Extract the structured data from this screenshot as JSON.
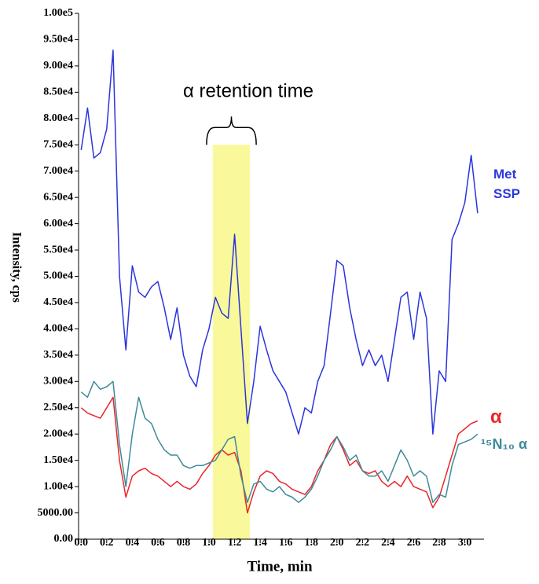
{
  "chart_data": {
    "type": "line",
    "annotation": "α retention time",
    "xlabel": "Time, min",
    "ylabel": "Intensity, cps",
    "xlim": [
      -0.02,
      3.15
    ],
    "ylim": [
      0,
      100000
    ],
    "xticks": [
      {
        "value": 0,
        "label": "0.0"
      },
      {
        "value": 0.2,
        "label": "0.2"
      },
      {
        "value": 0.4,
        "label": "0.4"
      },
      {
        "value": 0.6,
        "label": "0.6"
      },
      {
        "value": 0.8,
        "label": "0.8"
      },
      {
        "value": 1,
        "label": "1.0"
      },
      {
        "value": 1.2,
        "label": "1.2"
      },
      {
        "value": 1.4,
        "label": "1.4"
      },
      {
        "value": 1.6,
        "label": "1.6"
      },
      {
        "value": 1.8,
        "label": "1.8"
      },
      {
        "value": 2,
        "label": "2.0"
      },
      {
        "value": 2.2,
        "label": "2.2"
      },
      {
        "value": 2.4,
        "label": "2.4"
      },
      {
        "value": 2.6,
        "label": "2.6"
      },
      {
        "value": 2.8,
        "label": "2.8"
      },
      {
        "value": 3,
        "label": "3.0"
      }
    ],
    "yticks": [
      {
        "value": 0,
        "label": "0.00"
      },
      {
        "value": 5000,
        "label": "5000.00"
      },
      {
        "value": 10000,
        "label": "1.00e4"
      },
      {
        "value": 15000,
        "label": "1.50e4"
      },
      {
        "value": 20000,
        "label": "2.00e4"
      },
      {
        "value": 25000,
        "label": "2.50e4"
      },
      {
        "value": 30000,
        "label": "3.00e4"
      },
      {
        "value": 35000,
        "label": "3.50e4"
      },
      {
        "value": 40000,
        "label": "4.00e4"
      },
      {
        "value": 45000,
        "label": "4.50e4"
      },
      {
        "value": 50000,
        "label": "5.00e4"
      },
      {
        "value": 55000,
        "label": "5.50e4"
      },
      {
        "value": 60000,
        "label": "6.00e4"
      },
      {
        "value": 65000,
        "label": "6.50e4"
      },
      {
        "value": 70000,
        "label": "7.00e4"
      },
      {
        "value": 75000,
        "label": "7.50e4"
      },
      {
        "value": 80000,
        "label": "8.00e4"
      },
      {
        "value": 85000,
        "label": "8.50e4"
      },
      {
        "value": 90000,
        "label": "9.00e4"
      },
      {
        "value": 95000,
        "label": "9.50e4"
      },
      {
        "value": 100000,
        "label": "1.00e5"
      }
    ],
    "highlight": {
      "xlim": [
        1.03,
        1.32
      ],
      "ylim": [
        0,
        75000
      ],
      "color": "#f7f77a"
    },
    "x": [
      0,
      0.05,
      0.1,
      0.15,
      0.2,
      0.25,
      0.3,
      0.35,
      0.4,
      0.45,
      0.5,
      0.55,
      0.6,
      0.65,
      0.7,
      0.75,
      0.8,
      0.85,
      0.9,
      0.95,
      1,
      1.05,
      1.1,
      1.15,
      1.2,
      1.25,
      1.3,
      1.35,
      1.4,
      1.45,
      1.5,
      1.55,
      1.6,
      1.65,
      1.7,
      1.75,
      1.8,
      1.85,
      1.9,
      1.95,
      2,
      2.05,
      2.1,
      2.15,
      2.2,
      2.25,
      2.3,
      2.35,
      2.4,
      2.45,
      2.5,
      2.55,
      2.6,
      2.65,
      2.7,
      2.75,
      2.8,
      2.85,
      2.9,
      2.95,
      3,
      3.05,
      3.1
    ],
    "series": [
      {
        "name": "Met SSP",
        "color": "#2b35dc",
        "values": [
          74000,
          82000,
          72500,
          73500,
          78000,
          93000,
          50000,
          36000,
          52000,
          47000,
          46000,
          48000,
          49000,
          44000,
          38000,
          44000,
          35000,
          31000,
          29000,
          36000,
          40000,
          46000,
          43000,
          42000,
          58000,
          40000,
          22000,
          30000,
          40500,
          36000,
          32000,
          30000,
          28000,
          24000,
          20000,
          25000,
          24000,
          30000,
          33000,
          43000,
          53000,
          52000,
          44000,
          38000,
          33000,
          36000,
          33000,
          35000,
          30000,
          38000,
          46000,
          47000,
          38000,
          47000,
          42000,
          20000,
          32000,
          30000,
          57000,
          60000,
          64000,
          73000,
          62000
        ]
      },
      {
        "name": "α",
        "color": "#e8262a",
        "values": [
          25000,
          24000,
          23500,
          23000,
          25000,
          27000,
          15000,
          8000,
          12000,
          13000,
          13500,
          12500,
          12000,
          11000,
          10000,
          11000,
          10000,
          9500,
          10500,
          12500,
          14000,
          16000,
          17000,
          16000,
          16500,
          13000,
          5000,
          9000,
          12000,
          13000,
          12500,
          11000,
          10500,
          9500,
          9000,
          8500,
          10000,
          13000,
          15000,
          18000,
          19500,
          17000,
          14000,
          15000,
          13000,
          12500,
          13000,
          11000,
          10000,
          11000,
          10000,
          12000,
          10000,
          9500,
          9000,
          6000,
          8000,
          12000,
          16000,
          20000,
          21000,
          22000,
          22500
        ]
      },
      {
        "name": "¹⁵N₁₀ α",
        "color": "#3d8b9b",
        "values": [
          28000,
          27000,
          30000,
          28500,
          29000,
          30000,
          18000,
          10000,
          20000,
          27000,
          23000,
          22000,
          19000,
          17000,
          16000,
          16000,
          14000,
          13500,
          14000,
          14000,
          14500,
          15000,
          17000,
          19000,
          19500,
          12000,
          7000,
          10500,
          11000,
          9500,
          9000,
          10000,
          8500,
          8000,
          7000,
          8000,
          9500,
          12000,
          15000,
          17000,
          19500,
          17500,
          15000,
          16000,
          13000,
          12000,
          12000,
          13000,
          11000,
          14000,
          17000,
          15000,
          12000,
          13000,
          12000,
          7000,
          8500,
          8000,
          14000,
          18000,
          18500,
          19000,
          20000
        ]
      }
    ]
  }
}
